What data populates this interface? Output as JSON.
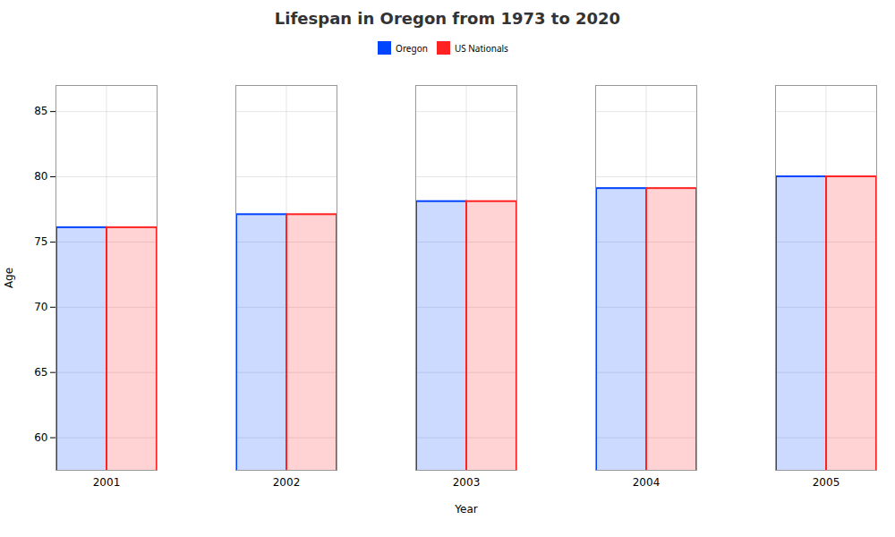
{
  "chart_data": {
    "type": "bar",
    "title": "Lifespan in Oregon from 1973 to 2020",
    "xlabel": "Year",
    "ylabel": "Age",
    "categories": [
      "2001",
      "2002",
      "2003",
      "2004",
      "2005"
    ],
    "series": [
      {
        "name": "Oregon",
        "color": "#0044ff",
        "values": [
          76.1,
          77.1,
          78.1,
          79.1,
          80.0
        ]
      },
      {
        "name": "US Nationals",
        "color": "#ff2222",
        "values": [
          76.1,
          77.1,
          78.1,
          79.1,
          80.0
        ]
      }
    ],
    "ylim": [
      57.5,
      87
    ],
    "yticks": [
      60,
      65,
      70,
      75,
      80,
      85
    ],
    "grid": true,
    "legend": "upper center"
  }
}
